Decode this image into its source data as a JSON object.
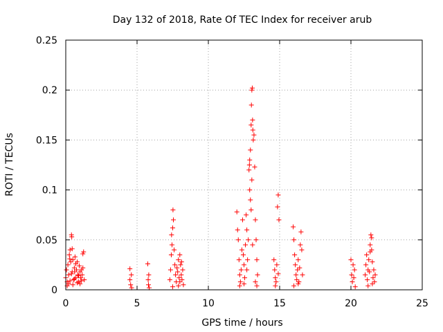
{
  "chart_data": {
    "type": "scatter",
    "title": "Day 132 of 2018, Rate Of TEC Index for receiver arub",
    "xlabel": "GPS time / hours",
    "ylabel": "ROTI / TECUs",
    "xlim": [
      0,
      25
    ],
    "ylim": [
      0,
      0.25
    ],
    "xticks": [
      0,
      5,
      10,
      15,
      20,
      25
    ],
    "yticks": [
      0,
      0.05,
      0.1,
      0.15,
      0.2,
      0.25
    ],
    "xtick_labels": [
      "0",
      "5",
      "10",
      "15",
      "20",
      "25"
    ],
    "ytick_labels": [
      "0",
      "0.05",
      "0.1",
      "0.15",
      "0.2",
      "0.25"
    ],
    "grid": true,
    "marker": "+",
    "color": "#ff0000",
    "series": [
      {
        "points": [
          [
            0.0,
            0.012
          ],
          [
            0.05,
            0.02
          ],
          [
            0.1,
            0.008
          ],
          [
            0.15,
            0.025
          ],
          [
            0.2,
            0.015
          ],
          [
            0.25,
            0.035
          ],
          [
            0.3,
            0.04
          ],
          [
            0.35,
            0.028
          ],
          [
            0.4,
            0.055
          ],
          [
            0.42,
            0.053
          ],
          [
            0.45,
            0.018
          ],
          [
            0.5,
            0.03
          ],
          [
            0.55,
            0.01
          ],
          [
            0.6,
            0.022
          ],
          [
            0.65,
            0.033
          ],
          [
            0.7,
            0.012
          ],
          [
            0.75,
            0.02
          ],
          [
            0.8,
            0.028
          ],
          [
            0.85,
            0.015
          ],
          [
            0.9,
            0.008
          ],
          [
            0.95,
            0.024
          ],
          [
            1.0,
            0.018
          ],
          [
            1.05,
            0.012
          ],
          [
            1.1,
            0.02
          ],
          [
            1.15,
            0.015
          ],
          [
            1.2,
            0.036
          ],
          [
            1.25,
            0.038
          ],
          [
            1.3,
            0.01
          ],
          [
            0.1,
            0.004
          ],
          [
            0.2,
            0.006
          ],
          [
            0.3,
            0.009
          ],
          [
            0.4,
            0.016
          ],
          [
            0.5,
            0.005
          ],
          [
            0.6,
            0.011
          ],
          [
            0.7,
            0.026
          ],
          [
            0.8,
            0.007
          ],
          [
            0.9,
            0.014
          ],
          [
            1.0,
            0.006
          ],
          [
            1.1,
            0.009
          ],
          [
            1.2,
            0.022
          ],
          [
            0.45,
            0.041
          ],
          [
            0.28,
            0.031
          ],
          [
            0.62,
            0.018
          ],
          [
            4.5,
            0.021
          ],
          [
            4.5,
            0.01
          ],
          [
            4.55,
            0.005
          ],
          [
            4.6,
            0.015
          ],
          [
            4.62,
            0.002
          ],
          [
            5.75,
            0.026
          ],
          [
            5.78,
            0.01
          ],
          [
            5.8,
            0.005
          ],
          [
            5.82,
            0.015
          ],
          [
            5.85,
            0.002
          ],
          [
            7.3,
            0.01
          ],
          [
            7.35,
            0.02
          ],
          [
            7.4,
            0.035
          ],
          [
            7.45,
            0.045
          ],
          [
            7.5,
            0.062
          ],
          [
            7.52,
            0.08
          ],
          [
            7.55,
            0.07
          ],
          [
            7.6,
            0.04
          ],
          [
            7.65,
            0.025
          ],
          [
            7.7,
            0.015
          ],
          [
            7.75,
            0.008
          ],
          [
            7.8,
            0.022
          ],
          [
            7.85,
            0.018
          ],
          [
            7.9,
            0.03
          ],
          [
            7.95,
            0.012
          ],
          [
            8.0,
            0.035
          ],
          [
            8.05,
            0.025
          ],
          [
            8.1,
            0.015
          ],
          [
            8.15,
            0.01
          ],
          [
            8.2,
            0.02
          ],
          [
            8.25,
            0.005
          ],
          [
            7.5,
            0.003
          ],
          [
            7.9,
            0.004
          ],
          [
            8.0,
            0.008
          ],
          [
            7.42,
            0.055
          ],
          [
            8.12,
            0.028
          ],
          [
            12.0,
            0.078
          ],
          [
            12.05,
            0.06
          ],
          [
            12.1,
            0.05
          ],
          [
            12.15,
            0.03
          ],
          [
            12.2,
            0.015
          ],
          [
            12.25,
            0.008
          ],
          [
            12.3,
            0.02
          ],
          [
            12.35,
            0.04
          ],
          [
            12.4,
            0.07
          ],
          [
            12.45,
            0.035
          ],
          [
            12.5,
            0.025
          ],
          [
            12.55,
            0.012
          ],
          [
            12.6,
            0.045
          ],
          [
            12.65,
            0.075
          ],
          [
            12.7,
            0.06
          ],
          [
            12.75,
            0.03
          ],
          [
            12.8,
            0.05
          ],
          [
            12.85,
            0.12
          ],
          [
            12.9,
            0.1
          ],
          [
            12.95,
            0.14
          ],
          [
            13.0,
            0.165
          ],
          [
            13.02,
            0.185
          ],
          [
            13.05,
            0.2
          ],
          [
            13.08,
            0.202
          ],
          [
            13.1,
            0.17
          ],
          [
            13.12,
            0.16
          ],
          [
            13.15,
            0.15
          ],
          [
            13.2,
            0.155
          ],
          [
            13.25,
            0.123
          ],
          [
            13.3,
            0.07
          ],
          [
            13.35,
            0.05
          ],
          [
            13.4,
            0.03
          ],
          [
            13.45,
            0.015
          ],
          [
            12.9,
            0.13
          ],
          [
            12.95,
            0.09
          ],
          [
            13.05,
            0.11
          ],
          [
            13.1,
            0.045
          ],
          [
            12.7,
            0.02
          ],
          [
            12.2,
            0.004
          ],
          [
            12.5,
            0.006
          ],
          [
            13.3,
            0.008
          ],
          [
            13.4,
            0.004
          ],
          [
            12.88,
            0.125
          ],
          [
            13.0,
            0.08
          ],
          [
            14.6,
            0.03
          ],
          [
            14.65,
            0.02
          ],
          [
            14.7,
            0.012
          ],
          [
            14.75,
            0.008
          ],
          [
            14.8,
            0.025
          ],
          [
            14.85,
            0.083
          ],
          [
            14.9,
            0.095
          ],
          [
            14.95,
            0.07
          ],
          [
            14.7,
            0.004
          ],
          [
            14.9,
            0.016
          ],
          [
            15.95,
            0.063
          ],
          [
            16.0,
            0.05
          ],
          [
            16.05,
            0.035
          ],
          [
            16.1,
            0.025
          ],
          [
            16.15,
            0.015
          ],
          [
            16.2,
            0.01
          ],
          [
            16.25,
            0.02
          ],
          [
            16.3,
            0.03
          ],
          [
            16.35,
            0.008
          ],
          [
            16.4,
            0.022
          ],
          [
            16.45,
            0.045
          ],
          [
            16.5,
            0.058
          ],
          [
            16.55,
            0.04
          ],
          [
            16.6,
            0.015
          ],
          [
            16.0,
            0.004
          ],
          [
            16.3,
            0.006
          ],
          [
            20.0,
            0.03
          ],
          [
            20.05,
            0.015
          ],
          [
            20.1,
            0.008
          ],
          [
            20.15,
            0.025
          ],
          [
            20.2,
            0.012
          ],
          [
            20.25,
            0.02
          ],
          [
            20.3,
            0.003
          ],
          [
            21.0,
            0.015
          ],
          [
            21.05,
            0.025
          ],
          [
            21.1,
            0.035
          ],
          [
            21.15,
            0.01
          ],
          [
            21.2,
            0.02
          ],
          [
            21.25,
            0.03
          ],
          [
            21.3,
            0.018
          ],
          [
            21.35,
            0.045
          ],
          [
            21.4,
            0.055
          ],
          [
            21.45,
            0.04
          ],
          [
            21.5,
            0.028
          ],
          [
            21.55,
            0.012
          ],
          [
            21.6,
            0.02
          ],
          [
            21.65,
            0.008
          ],
          [
            21.7,
            0.015
          ],
          [
            21.2,
            0.004
          ],
          [
            21.5,
            0.006
          ],
          [
            21.35,
            0.038
          ],
          [
            21.45,
            0.052
          ]
        ]
      }
    ]
  }
}
